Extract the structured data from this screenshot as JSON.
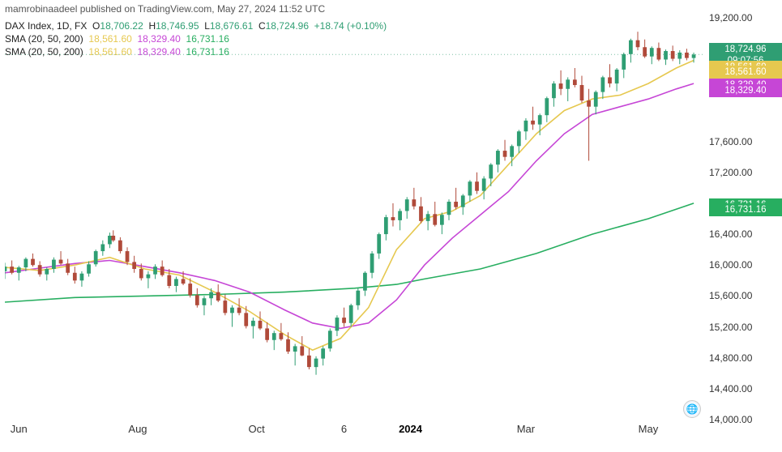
{
  "header": {
    "text": "mamrobinaadeel published on TradingView.com, May 27, 2024 11:52 UTC"
  },
  "legend": {
    "symbol": "DAX Index, 1D, FX",
    "O_label": "O",
    "O": "18,706.22",
    "H_label": "H",
    "H": "18,746.95",
    "L_label": "L",
    "L": "18,676.61",
    "C_label": "C",
    "C": "18,724.96",
    "chg": "+18.74 (+0.10%)",
    "sma_label": "SMA (20, 50, 200)",
    "sma20": "18,561.60",
    "sma50": "18,329.40",
    "sma200": "16,731.16"
  },
  "chart": {
    "ylim": [
      14000,
      19200
    ],
    "ytick_step": 400,
    "yticks": [
      14000,
      14400,
      14800,
      15200,
      15600,
      16000,
      16400,
      17200,
      17600,
      19200
    ],
    "ytick_labels": [
      "14,000.00",
      "14,400.00",
      "14,800.00",
      "15,200.00",
      "15,600.00",
      "16,000.00",
      "16,400.00",
      "17,200.00",
      "17,600.00",
      "19,200.00"
    ],
    "xticks": [
      {
        "pos": 0.02,
        "label": "Jun",
        "bold": false
      },
      {
        "pos": 0.19,
        "label": "Aug",
        "bold": false
      },
      {
        "pos": 0.36,
        "label": "Oct",
        "bold": false
      },
      {
        "pos": 0.485,
        "label": "6",
        "bold": false
      },
      {
        "pos": 0.58,
        "label": "2024",
        "bold": true
      },
      {
        "pos": 0.745,
        "label": "Mar",
        "bold": false
      },
      {
        "pos": 0.92,
        "label": "May",
        "bold": false
      }
    ],
    "price_line_y": 18724.96,
    "price_tags": [
      {
        "value": "18,724.96",
        "sub": "09:07:56",
        "y": 18724.96,
        "bg": "#2f9e73",
        "h": 28
      },
      {
        "value": "18,561.60",
        "y": 18561.6,
        "bg": "#e6c84f",
        "h": 16
      },
      {
        "value": "18,561.60",
        "y": 18500.0,
        "bg": "#e6c84f",
        "h": 16
      },
      {
        "value": "18,329.40",
        "y": 18329.4,
        "bg": "#c646d6",
        "h": 16
      },
      {
        "value": "18,329.40",
        "y": 18260.0,
        "bg": "#c646d6",
        "h": 16
      },
      {
        "value": "16,731.16",
        "y": 16781.16,
        "bg": "#27ae60",
        "h": 16
      },
      {
        "value": "16,731.16",
        "y": 16711.16,
        "bg": "#27ae60",
        "h": 16
      }
    ],
    "colors": {
      "up": "#2f9e73",
      "down": "#b04a3a",
      "sma20": "#e6c84f",
      "sma50": "#c646d6",
      "sma200": "#27ae60",
      "price_line": "#7cbfa4",
      "grid": "#f0f0f0",
      "bg": "#ffffff"
    },
    "sma20": [
      [
        0,
        15970
      ],
      [
        0.05,
        15930
      ],
      [
        0.1,
        16000
      ],
      [
        0.15,
        16100
      ],
      [
        0.2,
        15950
      ],
      [
        0.25,
        15870
      ],
      [
        0.3,
        15650
      ],
      [
        0.35,
        15400
      ],
      [
        0.4,
        15100
      ],
      [
        0.44,
        14900
      ],
      [
        0.48,
        15050
      ],
      [
        0.52,
        15450
      ],
      [
        0.56,
        16200
      ],
      [
        0.6,
        16600
      ],
      [
        0.64,
        16700
      ],
      [
        0.68,
        16900
      ],
      [
        0.72,
        17300
      ],
      [
        0.76,
        17700
      ],
      [
        0.8,
        18000
      ],
      [
        0.84,
        18150
      ],
      [
        0.88,
        18200
      ],
      [
        0.92,
        18350
      ],
      [
        0.96,
        18550
      ],
      [
        0.985,
        18650
      ]
    ],
    "sma50": [
      [
        0,
        15900
      ],
      [
        0.05,
        15960
      ],
      [
        0.1,
        16020
      ],
      [
        0.15,
        16060
      ],
      [
        0.2,
        15980
      ],
      [
        0.25,
        15900
      ],
      [
        0.3,
        15800
      ],
      [
        0.35,
        15650
      ],
      [
        0.4,
        15420
      ],
      [
        0.44,
        15250
      ],
      [
        0.48,
        15180
      ],
      [
        0.52,
        15250
      ],
      [
        0.56,
        15550
      ],
      [
        0.6,
        16000
      ],
      [
        0.64,
        16350
      ],
      [
        0.68,
        16650
      ],
      [
        0.72,
        16950
      ],
      [
        0.76,
        17350
      ],
      [
        0.8,
        17700
      ],
      [
        0.84,
        17950
      ],
      [
        0.88,
        18050
      ],
      [
        0.92,
        18150
      ],
      [
        0.96,
        18280
      ],
      [
        0.985,
        18350
      ]
    ],
    "sma200": [
      [
        0,
        15520
      ],
      [
        0.1,
        15580
      ],
      [
        0.2,
        15600
      ],
      [
        0.3,
        15620
      ],
      [
        0.4,
        15650
      ],
      [
        0.5,
        15700
      ],
      [
        0.56,
        15750
      ],
      [
        0.6,
        15820
      ],
      [
        0.68,
        15950
      ],
      [
        0.76,
        16150
      ],
      [
        0.84,
        16400
      ],
      [
        0.92,
        16600
      ],
      [
        0.985,
        16800
      ]
    ],
    "candles": [
      [
        0.0,
        15920,
        16030,
        15820,
        15980,
        1
      ],
      [
        0.01,
        15980,
        16060,
        15880,
        15900,
        0
      ],
      [
        0.02,
        15900,
        15990,
        15800,
        15970,
        1
      ],
      [
        0.03,
        15970,
        16100,
        15920,
        16080,
        1
      ],
      [
        0.04,
        16080,
        16150,
        15980,
        16000,
        0
      ],
      [
        0.05,
        16000,
        16050,
        15850,
        15880,
        0
      ],
      [
        0.06,
        15880,
        15970,
        15800,
        15950,
        1
      ],
      [
        0.07,
        15950,
        16100,
        15900,
        16070,
        1
      ],
      [
        0.08,
        16070,
        16180,
        16000,
        16020,
        0
      ],
      [
        0.09,
        16020,
        16080,
        15870,
        15900,
        0
      ],
      [
        0.1,
        15900,
        15980,
        15760,
        15800,
        0
      ],
      [
        0.11,
        15800,
        15920,
        15720,
        15890,
        1
      ],
      [
        0.12,
        15890,
        16050,
        15850,
        16010,
        1
      ],
      [
        0.13,
        16010,
        16200,
        15980,
        16180,
        1
      ],
      [
        0.14,
        16180,
        16320,
        16120,
        16270,
        1
      ],
      [
        0.15,
        16270,
        16420,
        16220,
        16380,
        1
      ],
      [
        0.155,
        16380,
        16450,
        16300,
        16320,
        0
      ],
      [
        0.165,
        16320,
        16360,
        16150,
        16180,
        0
      ],
      [
        0.175,
        16180,
        16230,
        16000,
        16040,
        0
      ],
      [
        0.185,
        16040,
        16120,
        15900,
        15950,
        0
      ],
      [
        0.195,
        15950,
        16020,
        15800,
        15830,
        0
      ],
      [
        0.205,
        15830,
        15920,
        15700,
        15880,
        1
      ],
      [
        0.215,
        15880,
        16010,
        15820,
        15980,
        1
      ],
      [
        0.225,
        15980,
        16060,
        15850,
        15870,
        0
      ],
      [
        0.235,
        15870,
        15950,
        15700,
        15730,
        0
      ],
      [
        0.245,
        15730,
        15850,
        15650,
        15820,
        1
      ],
      [
        0.255,
        15820,
        15920,
        15740,
        15760,
        0
      ],
      [
        0.265,
        15760,
        15830,
        15580,
        15610,
        0
      ],
      [
        0.275,
        15610,
        15700,
        15450,
        15480,
        0
      ],
      [
        0.285,
        15480,
        15600,
        15350,
        15570,
        1
      ],
      [
        0.295,
        15570,
        15700,
        15480,
        15650,
        1
      ],
      [
        0.305,
        15650,
        15750,
        15520,
        15540,
        0
      ],
      [
        0.315,
        15540,
        15620,
        15350,
        15380,
        0
      ],
      [
        0.325,
        15380,
        15480,
        15200,
        15450,
        1
      ],
      [
        0.335,
        15450,
        15570,
        15350,
        15380,
        0
      ],
      [
        0.345,
        15380,
        15470,
        15180,
        15210,
        0
      ],
      [
        0.355,
        15210,
        15320,
        15050,
        15280,
        1
      ],
      [
        0.365,
        15280,
        15400,
        15160,
        15180,
        0
      ],
      [
        0.375,
        15180,
        15260,
        15000,
        15030,
        0
      ],
      [
        0.385,
        15030,
        15150,
        14900,
        15120,
        1
      ],
      [
        0.395,
        15120,
        15250,
        15020,
        15040,
        0
      ],
      [
        0.405,
        15040,
        15130,
        14850,
        14880,
        0
      ],
      [
        0.415,
        14880,
        14980,
        14700,
        14950,
        1
      ],
      [
        0.425,
        14950,
        15080,
        14820,
        14830,
        0
      ],
      [
        0.435,
        14830,
        14920,
        14650,
        14680,
        0
      ],
      [
        0.445,
        14680,
        14820,
        14580,
        14790,
        1
      ],
      [
        0.455,
        14790,
        14950,
        14700,
        14920,
        1
      ],
      [
        0.465,
        14920,
        15180,
        14880,
        15150,
        1
      ],
      [
        0.475,
        15150,
        15350,
        15080,
        15320,
        1
      ],
      [
        0.485,
        15320,
        15450,
        15200,
        15250,
        0
      ],
      [
        0.495,
        15250,
        15500,
        15200,
        15480,
        1
      ],
      [
        0.505,
        15480,
        15700,
        15420,
        15670,
        1
      ],
      [
        0.515,
        15670,
        15920,
        15600,
        15900,
        1
      ],
      [
        0.525,
        15900,
        16180,
        15830,
        16150,
        1
      ],
      [
        0.535,
        16150,
        16420,
        16080,
        16400,
        1
      ],
      [
        0.545,
        16400,
        16650,
        16320,
        16620,
        1
      ],
      [
        0.555,
        16620,
        16800,
        16500,
        16580,
        0
      ],
      [
        0.565,
        16580,
        16730,
        16450,
        16700,
        1
      ],
      [
        0.575,
        16700,
        16880,
        16600,
        16850,
        1
      ],
      [
        0.585,
        16850,
        17000,
        16720,
        16760,
        0
      ],
      [
        0.595,
        16760,
        16880,
        16540,
        16570,
        0
      ],
      [
        0.605,
        16570,
        16700,
        16450,
        16660,
        1
      ],
      [
        0.615,
        16660,
        16820,
        16500,
        16520,
        0
      ],
      [
        0.625,
        16520,
        16680,
        16400,
        16650,
        1
      ],
      [
        0.635,
        16650,
        16850,
        16580,
        16820,
        1
      ],
      [
        0.645,
        16820,
        17000,
        16720,
        16750,
        0
      ],
      [
        0.655,
        16750,
        16920,
        16650,
        16900,
        1
      ],
      [
        0.665,
        16900,
        17100,
        16820,
        17080,
        1
      ],
      [
        0.675,
        17080,
        17200,
        16920,
        16960,
        0
      ],
      [
        0.685,
        16960,
        17150,
        16850,
        17120,
        1
      ],
      [
        0.695,
        17120,
        17320,
        17020,
        17300,
        1
      ],
      [
        0.705,
        17300,
        17500,
        17200,
        17480,
        1
      ],
      [
        0.715,
        17480,
        17620,
        17350,
        17400,
        0
      ],
      [
        0.725,
        17400,
        17560,
        17280,
        17540,
        1
      ],
      [
        0.735,
        17540,
        17750,
        17450,
        17730,
        1
      ],
      [
        0.745,
        17730,
        17900,
        17620,
        17870,
        1
      ],
      [
        0.755,
        17870,
        18050,
        17750,
        17820,
        0
      ],
      [
        0.765,
        17820,
        17960,
        17680,
        17940,
        1
      ],
      [
        0.775,
        17940,
        18180,
        17850,
        18160,
        1
      ],
      [
        0.785,
        18160,
        18380,
        18050,
        18350,
        1
      ],
      [
        0.795,
        18350,
        18520,
        18200,
        18280,
        0
      ],
      [
        0.805,
        18280,
        18430,
        18120,
        18400,
        1
      ],
      [
        0.815,
        18400,
        18550,
        18300,
        18330,
        0
      ],
      [
        0.825,
        18330,
        18450,
        18100,
        18130,
        0
      ],
      [
        0.835,
        18130,
        18280,
        17350,
        18050,
        0
      ],
      [
        0.845,
        18050,
        18260,
        17950,
        18240,
        1
      ],
      [
        0.855,
        18240,
        18450,
        18150,
        18430,
        1
      ],
      [
        0.865,
        18430,
        18600,
        18300,
        18350,
        0
      ],
      [
        0.875,
        18350,
        18550,
        18250,
        18530,
        1
      ],
      [
        0.885,
        18530,
        18750,
        18420,
        18730,
        1
      ],
      [
        0.895,
        18730,
        18930,
        18620,
        18910,
        1
      ],
      [
        0.905,
        18910,
        19020,
        18780,
        18820,
        0
      ],
      [
        0.915,
        18820,
        18920,
        18680,
        18700,
        0
      ],
      [
        0.925,
        18700,
        18830,
        18600,
        18810,
        1
      ],
      [
        0.935,
        18810,
        18880,
        18640,
        18660,
        0
      ],
      [
        0.945,
        18660,
        18790,
        18590,
        18770,
        1
      ],
      [
        0.955,
        18770,
        18840,
        18640,
        18670,
        0
      ],
      [
        0.965,
        18670,
        18780,
        18600,
        18750,
        1
      ],
      [
        0.975,
        18750,
        18800,
        18650,
        18680,
        0
      ],
      [
        0.985,
        18680,
        18750,
        18620,
        18725,
        1
      ]
    ]
  }
}
